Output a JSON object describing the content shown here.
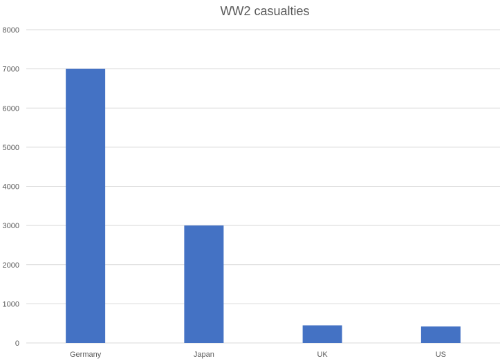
{
  "chart_data": {
    "type": "bar",
    "title": "WW2 casualties",
    "categories": [
      "Germany",
      "Japan",
      "UK",
      "US"
    ],
    "values": [
      7000,
      3000,
      450,
      420
    ],
    "ylim": [
      0,
      8000
    ],
    "yticks": [
      "0",
      "1000",
      "2000",
      "3000",
      "4000",
      "5000",
      "6000",
      "7000",
      "8000"
    ],
    "grid": true,
    "bar_color": "#4472c4",
    "xlabel": "",
    "ylabel": ""
  }
}
